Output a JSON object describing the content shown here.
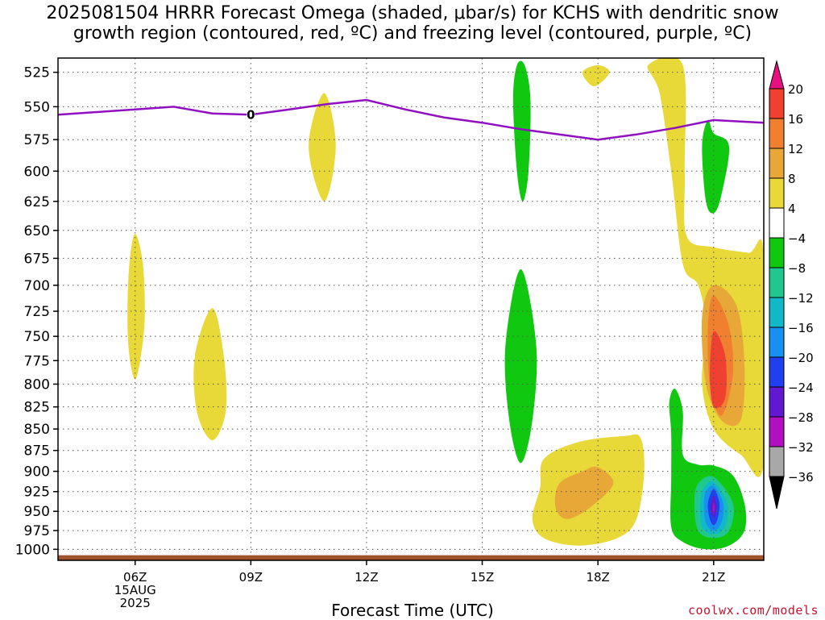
{
  "title": {
    "line1": "2025081504 HRRR Forecast Omega (shaded, μbar/s) for KCHS with dendritic snow",
    "line2": "growth region (contoured, red, ºC) and freezing level (contoured, purple, ºC)"
  },
  "credit": "coolwx.com/models",
  "chart_data": {
    "type": "heatmap",
    "title": "2025081504 HRRR Forecast Omega (shaded, μbar/s) for KCHS with dendritic snow growth region (contoured, red, ºC) and freezing level (contoured, purple, ºC)",
    "xlabel": "Forecast Time (UTC)",
    "ylabel": "",
    "x_hours_range": [
      4,
      22.3
    ],
    "y_pressure_range": [
      515,
      1015
    ],
    "y_scale": "log-pressure, inverted",
    "x_ticks": [
      {
        "hour": 6,
        "label": "06Z",
        "sub1": "15AUG",
        "sub2": "2025"
      },
      {
        "hour": 9,
        "label": "09Z"
      },
      {
        "hour": 12,
        "label": "12Z"
      },
      {
        "hour": 15,
        "label": "15Z"
      },
      {
        "hour": 18,
        "label": "18Z"
      },
      {
        "hour": 21,
        "label": "21Z"
      }
    ],
    "y_ticks": [
      525,
      550,
      575,
      600,
      625,
      650,
      675,
      700,
      725,
      750,
      775,
      800,
      825,
      850,
      875,
      900,
      925,
      950,
      975,
      1000
    ],
    "grid": true,
    "colorbar": {
      "labels": [
        "20",
        "16",
        "12",
        "8",
        "4",
        "−4",
        "−8",
        "−12",
        "−16",
        "−20",
        "−24",
        "−28",
        "−32",
        "−36"
      ],
      "bins": [
        {
          "from": 20,
          "to": null,
          "color": "#e8107e"
        },
        {
          "from": 16,
          "to": 20,
          "color": "#f04030"
        },
        {
          "from": 12,
          "to": 16,
          "color": "#f08030"
        },
        {
          "from": 8,
          "to": 12,
          "color": "#e8a838"
        },
        {
          "from": 4,
          "to": 8,
          "color": "#e8d838"
        },
        {
          "from": -4,
          "to": 4,
          "color": "#ffffff"
        },
        {
          "from": -8,
          "to": -4,
          "color": "#10c810"
        },
        {
          "from": -12,
          "to": -8,
          "color": "#20c890"
        },
        {
          "from": -16,
          "to": -12,
          "color": "#10b8c8"
        },
        {
          "from": -20,
          "to": -16,
          "color": "#1890f0"
        },
        {
          "from": -24,
          "to": -20,
          "color": "#2040f0"
        },
        {
          "from": -28,
          "to": -24,
          "color": "#6018d0"
        },
        {
          "from": -32,
          "to": -28,
          "color": "#b010c0"
        },
        {
          "from": -36,
          "to": -32,
          "color": "#a8a8a8"
        },
        {
          "from": null,
          "to": -36,
          "color": "#000000"
        }
      ]
    },
    "freezing_level": {
      "color": "#9010c0",
      "label": "0",
      "points": [
        [
          4.0,
          556
        ],
        [
          5.0,
          554
        ],
        [
          6.0,
          552
        ],
        [
          7.0,
          550
        ],
        [
          8.0,
          555
        ],
        [
          9.0,
          556
        ],
        [
          10.0,
          552
        ],
        [
          11.0,
          548
        ],
        [
          12.0,
          545
        ],
        [
          13.0,
          552
        ],
        [
          14.0,
          558
        ],
        [
          15.0,
          562
        ],
        [
          16.0,
          567
        ],
        [
          17.0,
          571
        ],
        [
          18.0,
          575
        ],
        [
          19.0,
          571
        ],
        [
          20.0,
          566
        ],
        [
          21.0,
          560
        ],
        [
          22.3,
          562
        ]
      ]
    },
    "terrain": {
      "color": "#a0522d",
      "top_pressure": 1008
    },
    "omega_regions": [
      {
        "value": 6,
        "points": [
          [
            6.0,
            653
          ],
          [
            6.2,
            680
          ],
          [
            6.25,
            730
          ],
          [
            6.15,
            770
          ],
          [
            6.0,
            795
          ],
          [
            5.85,
            770
          ],
          [
            5.8,
            730
          ],
          [
            5.85,
            680
          ]
        ]
      },
      {
        "value": 6,
        "points": [
          [
            8.0,
            722
          ],
          [
            8.3,
            770
          ],
          [
            8.35,
            830
          ],
          [
            8.0,
            863
          ],
          [
            7.6,
            830
          ],
          [
            7.55,
            770
          ]
        ]
      },
      {
        "value": 6,
        "points": [
          [
            10.9,
            540
          ],
          [
            11.2,
            580
          ],
          [
            10.9,
            625
          ],
          [
            10.5,
            580
          ]
        ]
      },
      {
        "value": 6,
        "points": [
          [
            18.0,
            520
          ],
          [
            18.3,
            525
          ],
          [
            17.9,
            535
          ],
          [
            17.6,
            525
          ]
        ]
      },
      {
        "value": 6,
        "points": [
          [
            19.3,
            520
          ],
          [
            20.2,
            520
          ],
          [
            20.25,
            600
          ],
          [
            20.3,
            655
          ],
          [
            21.0,
            665
          ],
          [
            21.9,
            670
          ],
          [
            22.3,
            672
          ],
          [
            22.3,
            890
          ],
          [
            21.7,
            880
          ],
          [
            21.0,
            850
          ],
          [
            20.7,
            800
          ],
          [
            20.8,
            740
          ],
          [
            20.6,
            700
          ],
          [
            20.2,
            680
          ],
          [
            19.9,
            600
          ],
          [
            19.6,
            540
          ]
        ]
      },
      {
        "value": 10,
        "points": [
          [
            21.0,
            700
          ],
          [
            21.6,
            720
          ],
          [
            21.8,
            780
          ],
          [
            21.7,
            840
          ],
          [
            21.2,
            840
          ],
          [
            20.8,
            800
          ],
          [
            20.7,
            730
          ]
        ]
      },
      {
        "value": 14,
        "points": [
          [
            21.0,
            710
          ],
          [
            21.4,
            740
          ],
          [
            21.5,
            790
          ],
          [
            21.2,
            835
          ],
          [
            20.9,
            800
          ],
          [
            20.85,
            740
          ]
        ]
      },
      {
        "value": 18,
        "points": [
          [
            21.0,
            745
          ],
          [
            21.3,
            770
          ],
          [
            21.3,
            815
          ],
          [
            21.0,
            825
          ],
          [
            20.9,
            790
          ]
        ]
      },
      {
        "value": 6,
        "points": [
          [
            16.6,
            885
          ],
          [
            17.5,
            865
          ],
          [
            18.7,
            858
          ],
          [
            19.1,
            860
          ],
          [
            19.2,
            900
          ],
          [
            19.0,
            960
          ],
          [
            18.5,
            985
          ],
          [
            17.5,
            995
          ],
          [
            16.6,
            985
          ],
          [
            16.3,
            960
          ],
          [
            16.5,
            920
          ]
        ]
      },
      {
        "value": 10,
        "points": [
          [
            17.0,
            915
          ],
          [
            17.6,
            900
          ],
          [
            18.0,
            895
          ],
          [
            18.4,
            915
          ],
          [
            17.8,
            945
          ],
          [
            17.2,
            960
          ],
          [
            16.9,
            945
          ]
        ]
      },
      {
        "value": -6,
        "points": [
          [
            16.1,
            520
          ],
          [
            16.25,
            545
          ],
          [
            16.2,
            600
          ],
          [
            16.05,
            625
          ],
          [
            15.9,
            600
          ],
          [
            15.8,
            545
          ],
          [
            15.9,
            520
          ]
        ]
      },
      {
        "value": -6,
        "points": [
          [
            16.0,
            685
          ],
          [
            16.4,
            760
          ],
          [
            16.3,
            840
          ],
          [
            16.0,
            890
          ],
          [
            15.7,
            840
          ],
          [
            15.6,
            760
          ]
        ]
      },
      {
        "value": -6,
        "points": [
          [
            21.0,
            570
          ],
          [
            21.4,
            580
          ],
          [
            21.2,
            620
          ],
          [
            21.0,
            635
          ],
          [
            20.8,
            625
          ],
          [
            20.7,
            580
          ],
          [
            20.85,
            560
          ]
        ]
      },
      {
        "value": -6,
        "points": [
          [
            20.0,
            805
          ],
          [
            20.2,
            830
          ],
          [
            20.2,
            880
          ],
          [
            20.6,
            892
          ],
          [
            21.0,
            893
          ],
          [
            21.5,
            905
          ],
          [
            21.8,
            940
          ],
          [
            21.8,
            975
          ],
          [
            21.4,
            995
          ],
          [
            20.8,
            1000
          ],
          [
            20.2,
            990
          ],
          [
            19.9,
            970
          ],
          [
            19.9,
            910
          ],
          [
            19.9,
            855
          ],
          [
            19.85,
            820
          ]
        ]
      },
      {
        "value": -10,
        "points": [
          [
            21.0,
            907
          ],
          [
            21.5,
            940
          ],
          [
            21.4,
            975
          ],
          [
            21.0,
            985
          ],
          [
            20.6,
            975
          ],
          [
            20.5,
            940
          ],
          [
            20.6,
            915
          ]
        ]
      },
      {
        "value": -14,
        "points": [
          [
            21.0,
            913
          ],
          [
            21.35,
            940
          ],
          [
            21.3,
            970
          ],
          [
            21.0,
            980
          ],
          [
            20.7,
            970
          ],
          [
            20.65,
            940
          ],
          [
            20.75,
            920
          ]
        ]
      },
      {
        "value": -18,
        "points": [
          [
            21.0,
            918
          ],
          [
            21.25,
            940
          ],
          [
            21.2,
            965
          ],
          [
            21.0,
            975
          ],
          [
            20.8,
            965
          ],
          [
            20.75,
            940
          ],
          [
            20.8,
            925
          ]
        ]
      },
      {
        "value": -22,
        "points": [
          [
            21.0,
            922
          ],
          [
            21.15,
            940
          ],
          [
            21.1,
            960
          ],
          [
            21.0,
            968
          ],
          [
            20.9,
            960
          ],
          [
            20.85,
            940
          ]
        ]
      },
      {
        "value": -26,
        "points": [
          [
            21.0,
            930
          ],
          [
            21.08,
            945
          ],
          [
            21.0,
            958
          ],
          [
            20.92,
            945
          ]
        ]
      },
      {
        "value": -30,
        "points": [
          [
            21.0,
            938
          ],
          [
            21.03,
            946
          ],
          [
            21.0,
            952
          ],
          [
            20.97,
            946
          ]
        ]
      }
    ]
  }
}
